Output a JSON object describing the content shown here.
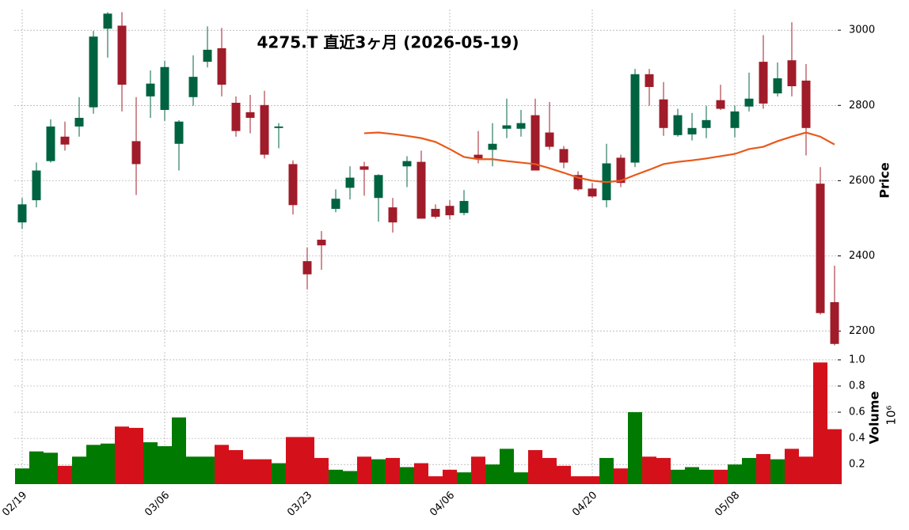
{
  "chart_data": {
    "type": "candlestick",
    "title": "4275.T  直近3ヶ月  (2026-05-19)",
    "categories": [
      "02/19",
      null,
      null,
      null,
      null,
      null,
      null,
      null,
      null,
      null,
      "03/06",
      null,
      null,
      null,
      null,
      null,
      null,
      null,
      null,
      null,
      "03/23",
      null,
      null,
      null,
      null,
      null,
      null,
      null,
      null,
      null,
      "04/06",
      null,
      null,
      null,
      null,
      null,
      null,
      null,
      null,
      null,
      "04/20",
      null,
      null,
      null,
      null,
      null,
      null,
      null,
      null,
      null,
      "05/08",
      null,
      null,
      null,
      null,
      null,
      null,
      null
    ],
    "open": [
      2489,
      2548,
      2652,
      2717,
      2744,
      2795,
      3004,
      3012,
      2705,
      2824,
      2788,
      2698,
      2822,
      2916,
      2952,
      2807,
      2782,
      2801,
      2740,
      2644,
      2386,
      2443,
      2525,
      2581,
      2638,
      2554,
      2529,
      2638,
      2650,
      2525,
      2533,
      2514,
      2669,
      2682,
      2738,
      2738,
      2774,
      2728,
      2684,
      2615,
      2579,
      2548,
      2661,
      2648,
      2883,
      2816,
      2721,
      2723,
      2740,
      2814,
      2740,
      2797,
      2916,
      2832,
      2920,
      2866,
      2592,
      2277
    ],
    "high": [
      2554,
      2648,
      2763,
      2757,
      2822,
      2998,
      3048,
      3048,
      2822,
      2893,
      2918,
      2761,
      2933,
      3010,
      3006,
      2824,
      2828,
      2839,
      2753,
      2654,
      2422,
      2466,
      2577,
      2638,
      2650,
      2617,
      2554,
      2665,
      2680,
      2537,
      2548,
      2575,
      2732,
      2753,
      2818,
      2788,
      2818,
      2809,
      2692,
      2625,
      2594,
      2698,
      2669,
      2897,
      2897,
      2862,
      2791,
      2780,
      2799,
      2855,
      2799,
      2887,
      2987,
      2914,
      3021,
      2910,
      2636,
      2374
    ],
    "low": [
      2472,
      2529,
      2648,
      2680,
      2717,
      2778,
      2927,
      2784,
      2562,
      2767,
      2759,
      2627,
      2799,
      2901,
      2824,
      2717,
      2726,
      2659,
      2686,
      2510,
      2311,
      2363,
      2516,
      2550,
      2560,
      2491,
      2462,
      2583,
      2499,
      2499,
      2497,
      2508,
      2646,
      2638,
      2713,
      2717,
      2627,
      2682,
      2633,
      2573,
      2554,
      2529,
      2583,
      2636,
      2799,
      2719,
      2717,
      2707,
      2713,
      2788,
      2715,
      2784,
      2791,
      2824,
      2824,
      2667,
      2244,
      2162
    ],
    "close": [
      2537,
      2627,
      2744,
      2696,
      2767,
      2983,
      3044,
      2855,
      2644,
      2858,
      2902,
      2757,
      2876,
      2948,
      2855,
      2732,
      2767,
      2669,
      2744,
      2535,
      2351,
      2428,
      2552,
      2608,
      2629,
      2615,
      2489,
      2652,
      2499,
      2504,
      2508,
      2546,
      2659,
      2698,
      2747,
      2753,
      2627,
      2690,
      2648,
      2577,
      2558,
      2646,
      2594,
      2883,
      2849,
      2740,
      2774,
      2740,
      2761,
      2791,
      2784,
      2818,
      2805,
      2872,
      2851,
      2740,
      2248,
      2166
    ],
    "up_color": "#006340",
    "down_color": "#a01c2a",
    "ma": {
      "color": "#e8591a",
      "values": [
        null,
        null,
        null,
        null,
        null,
        null,
        null,
        null,
        null,
        null,
        null,
        null,
        null,
        null,
        null,
        null,
        null,
        null,
        null,
        null,
        null,
        null,
        null,
        null,
        2726,
        2728,
        2724,
        2719,
        2713,
        2703,
        2684,
        2663,
        2657,
        2657,
        2652,
        2648,
        2644,
        2633,
        2621,
        2608,
        2600,
        2596,
        2600,
        2615,
        2629,
        2644,
        2650,
        2654,
        2659,
        2665,
        2671,
        2684,
        2690,
        2705,
        2717,
        2728,
        2717,
        2696
      ]
    },
    "ylim": [
      2155,
      3055
    ],
    "yticks": [
      2200,
      2400,
      2600,
      2800,
      3000
    ],
    "ylabel": "Price",
    "grid": true,
    "volume": {
      "values": [
        0.17,
        0.3,
        0.29,
        0.19,
        0.26,
        0.35,
        0.36,
        0.49,
        0.48,
        0.37,
        0.34,
        0.56,
        0.26,
        0.26,
        0.35,
        0.31,
        0.24,
        0.24,
        0.21,
        0.41,
        0.41,
        0.25,
        0.16,
        0.15,
        0.26,
        0.24,
        0.25,
        0.18,
        0.21,
        0.11,
        0.16,
        0.14,
        0.26,
        0.2,
        0.32,
        0.14,
        0.31,
        0.25,
        0.19,
        0.11,
        0.11,
        0.25,
        0.17,
        0.6,
        0.26,
        0.25,
        0.16,
        0.18,
        0.16,
        0.16,
        0.2,
        0.25,
        0.28,
        0.24,
        0.32,
        0.26,
        0.98,
        0.47
      ],
      "up_color": "#007a00",
      "down_color": "#d4111b",
      "ylim": [
        0.05,
        1.06
      ],
      "yticks": [
        0.2,
        0.4,
        0.6,
        0.8,
        {
          "value": 1,
          "label": "1.0"
        }
      ],
      "ylabel": "Volume",
      "offset": "10⁶"
    }
  }
}
